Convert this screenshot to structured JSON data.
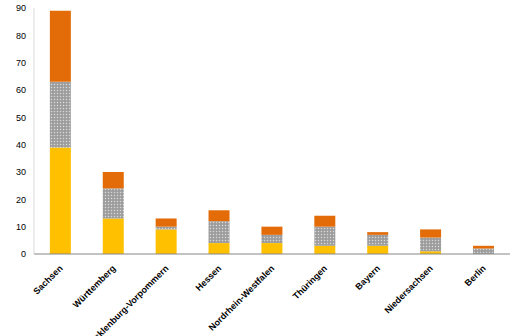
{
  "chart_data": {
    "type": "bar",
    "categories": [
      "Sachsen",
      "Württemberg",
      "Mecklenburg-Vorpommern",
      "Hessen",
      "Nordrhein-Westfalen",
      "Thüringen",
      "Bayern",
      "Niedersachsen",
      "Berlin"
    ],
    "series": [
      {
        "color": "#ffc000",
        "values": [
          39,
          13,
          9,
          4,
          4,
          3,
          3,
          1,
          0
        ]
      },
      {
        "color": "#a6a6a6",
        "values": [
          24,
          11,
          1,
          8,
          3,
          7,
          4,
          5,
          2
        ]
      },
      {
        "color": "#e36c09",
        "values": [
          26,
          6,
          3,
          4,
          3,
          4,
          1,
          3,
          1
        ]
      }
    ],
    "stacked": true,
    "grid": false,
    "ylim": [
      0,
      90
    ],
    "yticks": [
      0,
      10,
      20,
      30,
      40,
      50,
      60,
      70,
      80,
      90
    ]
  }
}
